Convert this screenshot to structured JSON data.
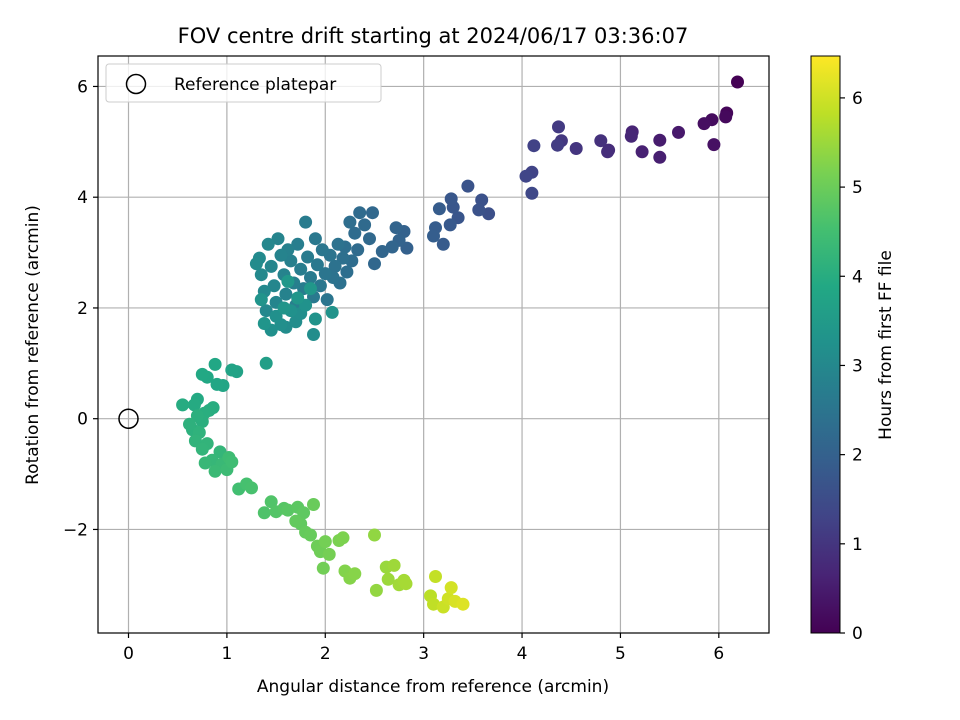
{
  "chart_data": {
    "type": "scatter",
    "title": "FOV centre drift starting at 2024/06/17 03:36:07",
    "xlabel": "Angular distance from reference (arcmin)",
    "ylabel": "Rotation from reference (arcmin)",
    "xlim": [
      -0.31,
      6.51
    ],
    "ylim": [
      -3.87,
      6.55
    ],
    "xticks": [
      0,
      1,
      2,
      3,
      4,
      5,
      6
    ],
    "yticks": [
      -2,
      0,
      2,
      4,
      6
    ],
    "ytick_labels": [
      "−2",
      "0",
      "2",
      "4",
      "6"
    ],
    "grid": true,
    "legend": {
      "position": "top-left",
      "entries": [
        "Reference platepar"
      ]
    },
    "reference_point": {
      "name": "Reference platepar",
      "x": 0,
      "y": 0
    },
    "colorbar": {
      "label": "Hours from first FF file",
      "range": [
        0,
        6.47
      ],
      "ticks": [
        0,
        1,
        2,
        3,
        4,
        5,
        6
      ],
      "colormap": "viridis"
    },
    "series": [
      {
        "color_value_index": 2,
        "points": [
          [
            6.19,
            6.08,
            0.0
          ],
          [
            6.08,
            5.52,
            0.1
          ],
          [
            6.07,
            5.45,
            0.15
          ],
          [
            5.93,
            5.4,
            0.2
          ],
          [
            5.85,
            5.33,
            0.25
          ],
          [
            5.95,
            4.95,
            0.3
          ],
          [
            5.59,
            5.17,
            0.45
          ],
          [
            5.4,
            5.03,
            0.5
          ],
          [
            5.4,
            4.72,
            0.55
          ],
          [
            5.22,
            4.82,
            0.6
          ],
          [
            5.12,
            5.18,
            0.65
          ],
          [
            5.11,
            5.1,
            0.7
          ],
          [
            4.88,
            4.85,
            0.8
          ],
          [
            4.87,
            4.82,
            0.85
          ],
          [
            4.8,
            5.02,
            0.9
          ],
          [
            4.55,
            4.88,
            1.0
          ],
          [
            4.4,
            5.02,
            1.05
          ],
          [
            4.37,
            5.27,
            1.1
          ],
          [
            4.36,
            4.94,
            1.15
          ],
          [
            4.12,
            4.93,
            1.25
          ],
          [
            4.1,
            4.45,
            1.3
          ],
          [
            4.04,
            4.38,
            1.35
          ],
          [
            4.1,
            4.07,
            1.4
          ],
          [
            3.66,
            3.7,
            1.55
          ],
          [
            3.59,
            3.95,
            1.6
          ],
          [
            3.56,
            3.77,
            1.62
          ],
          [
            3.45,
            4.2,
            1.65
          ],
          [
            3.35,
            3.63,
            1.7
          ],
          [
            3.3,
            3.82,
            1.72
          ],
          [
            3.28,
            3.97,
            1.75
          ],
          [
            3.27,
            3.5,
            1.8
          ],
          [
            3.2,
            3.15,
            1.85
          ],
          [
            3.16,
            3.79,
            1.88
          ],
          [
            3.12,
            3.45,
            1.9
          ],
          [
            3.1,
            3.3,
            1.92
          ],
          [
            2.83,
            3.08,
            2.0
          ],
          [
            2.8,
            3.38,
            2.02
          ],
          [
            2.75,
            3.22,
            2.05
          ],
          [
            2.72,
            3.45,
            2.08
          ],
          [
            2.68,
            3.1,
            2.1
          ],
          [
            2.58,
            3.02,
            2.12
          ],
          [
            2.5,
            2.8,
            2.15
          ],
          [
            2.48,
            3.72,
            2.18
          ],
          [
            2.45,
            3.25,
            2.2
          ],
          [
            2.4,
            3.5,
            2.22
          ],
          [
            2.35,
            3.72,
            2.24
          ],
          [
            2.33,
            3.05,
            2.26
          ],
          [
            2.3,
            3.35,
            2.28
          ],
          [
            2.27,
            2.85,
            2.3
          ],
          [
            2.25,
            3.55,
            2.32
          ],
          [
            2.22,
            2.65,
            2.34
          ],
          [
            2.2,
            3.1,
            2.36
          ],
          [
            2.18,
            2.9,
            2.38
          ],
          [
            2.15,
            2.45,
            2.4
          ],
          [
            2.13,
            3.15,
            2.42
          ],
          [
            2.1,
            2.75,
            2.44
          ],
          [
            2.08,
            2.55,
            2.46
          ],
          [
            2.05,
            2.95,
            2.48
          ],
          [
            2.02,
            2.15,
            2.5
          ],
          [
            2.0,
            2.62,
            2.52
          ],
          [
            1.97,
            3.05,
            2.54
          ],
          [
            1.95,
            2.4,
            2.56
          ],
          [
            1.92,
            2.78,
            2.58
          ],
          [
            1.9,
            3.25,
            2.6
          ],
          [
            1.88,
            2.2,
            2.62
          ],
          [
            1.85,
            2.55,
            2.64
          ],
          [
            1.82,
            2.92,
            2.66
          ],
          [
            1.8,
            3.55,
            2.68
          ],
          [
            1.78,
            2.35,
            2.7
          ],
          [
            1.75,
            2.7,
            2.72
          ],
          [
            1.72,
            3.15,
            2.74
          ],
          [
            1.7,
            2.05,
            2.76
          ],
          [
            1.68,
            2.45,
            2.78
          ],
          [
            1.65,
            2.85,
            2.8
          ],
          [
            1.62,
            3.05,
            2.82
          ],
          [
            1.6,
            2.25,
            2.84
          ],
          [
            1.58,
            2.6,
            2.86
          ],
          [
            1.55,
            2.95,
            2.88
          ],
          [
            1.52,
            3.25,
            2.9
          ],
          [
            1.5,
            2.1,
            2.92
          ],
          [
            1.48,
            2.4,
            2.94
          ],
          [
            1.45,
            2.75,
            2.96
          ],
          [
            1.42,
            3.15,
            2.98
          ],
          [
            1.4,
            1.95,
            3.0
          ],
          [
            1.38,
            2.3,
            3.02
          ],
          [
            1.35,
            2.6,
            3.04
          ],
          [
            1.33,
            2.9,
            3.06
          ],
          [
            1.3,
            2.8,
            3.08
          ],
          [
            1.6,
            1.65,
            3.1
          ],
          [
            1.7,
            1.75,
            3.12
          ],
          [
            1.88,
            1.52,
            3.14
          ],
          [
            1.75,
            1.9,
            3.16
          ],
          [
            1.55,
            1.7,
            3.18
          ],
          [
            1.45,
            1.6,
            3.2
          ],
          [
            1.5,
            1.85,
            3.22
          ],
          [
            1.65,
            1.95,
            3.24
          ],
          [
            1.8,
            2.05,
            3.26
          ],
          [
            1.9,
            1.8,
            3.28
          ],
          [
            2.07,
            1.92,
            3.3
          ],
          [
            1.35,
            2.15,
            3.32
          ],
          [
            1.38,
            1.72,
            3.34
          ],
          [
            1.58,
            2.0,
            3.36
          ],
          [
            1.72,
            2.18,
            3.38
          ],
          [
            1.85,
            2.35,
            3.4
          ],
          [
            1.62,
            2.48,
            3.42
          ],
          [
            1.4,
            1.0,
            3.6
          ],
          [
            1.1,
            0.85,
            3.7
          ],
          [
            1.05,
            0.88,
            3.75
          ],
          [
            0.96,
            0.6,
            3.8
          ],
          [
            0.9,
            0.62,
            3.82
          ],
          [
            0.88,
            0.98,
            3.84
          ],
          [
            0.8,
            0.75,
            3.86
          ],
          [
            0.75,
            0.8,
            3.88
          ],
          [
            0.7,
            0.35,
            3.92
          ],
          [
            0.67,
            0.25,
            3.95
          ],
          [
            0.55,
            0.25,
            3.98
          ],
          [
            0.86,
            0.2,
            4.0
          ],
          [
            0.82,
            0.15,
            4.02
          ],
          [
            0.77,
            0.1,
            4.04
          ],
          [
            0.75,
            -0.05,
            4.06
          ],
          [
            0.7,
            0.05,
            4.08
          ],
          [
            0.65,
            -0.2,
            4.1
          ],
          [
            0.62,
            -0.1,
            4.12
          ],
          [
            0.72,
            -0.25,
            4.15
          ],
          [
            0.68,
            -0.4,
            4.18
          ],
          [
            0.8,
            -0.45,
            4.2
          ],
          [
            0.75,
            -0.55,
            4.22
          ],
          [
            0.93,
            -0.6,
            4.25
          ],
          [
            0.85,
            -0.75,
            4.28
          ],
          [
            0.78,
            -0.8,
            4.3
          ],
          [
            0.95,
            -0.82,
            4.33
          ],
          [
            0.88,
            -0.95,
            4.36
          ],
          [
            1.0,
            -0.92,
            4.4
          ],
          [
            1.02,
            -0.7,
            4.42
          ],
          [
            1.05,
            -0.78,
            4.44
          ],
          [
            1.12,
            -1.27,
            4.5
          ],
          [
            1.2,
            -1.18,
            4.55
          ],
          [
            1.25,
            -1.25,
            4.58
          ],
          [
            1.38,
            -1.7,
            4.65
          ],
          [
            1.45,
            -1.5,
            4.68
          ],
          [
            1.5,
            -1.68,
            4.72
          ],
          [
            1.58,
            -1.62,
            4.75
          ],
          [
            1.62,
            -1.65,
            4.78
          ],
          [
            1.72,
            -1.6,
            4.82
          ],
          [
            1.78,
            -1.7,
            4.85
          ],
          [
            1.75,
            -1.9,
            4.88
          ],
          [
            1.7,
            -1.85,
            4.9
          ],
          [
            1.8,
            -2.05,
            4.93
          ],
          [
            1.85,
            -2.1,
            4.95
          ],
          [
            1.88,
            -1.55,
            4.97
          ],
          [
            1.92,
            -2.3,
            5.02
          ],
          [
            1.95,
            -2.4,
            5.05
          ],
          [
            1.98,
            -2.7,
            5.08
          ],
          [
            2.0,
            -2.22,
            5.1
          ],
          [
            2.04,
            -2.45,
            5.12
          ],
          [
            2.14,
            -2.2,
            5.18
          ],
          [
            2.18,
            -2.15,
            5.2
          ],
          [
            2.2,
            -2.75,
            5.25
          ],
          [
            2.25,
            -2.88,
            5.28
          ],
          [
            2.3,
            -2.8,
            5.3
          ],
          [
            2.5,
            -2.1,
            5.4
          ],
          [
            2.52,
            -3.1,
            5.42
          ],
          [
            2.62,
            -2.68,
            5.48
          ],
          [
            2.64,
            -2.9,
            5.5
          ],
          [
            2.7,
            -2.65,
            5.52
          ],
          [
            2.75,
            -3.0,
            5.55
          ],
          [
            2.8,
            -2.92,
            5.58
          ],
          [
            2.82,
            -2.98,
            5.6
          ],
          [
            3.07,
            -3.2,
            5.8
          ],
          [
            3.1,
            -3.35,
            5.85
          ],
          [
            3.12,
            -2.85,
            5.88
          ],
          [
            3.2,
            -3.4,
            5.95
          ],
          [
            3.25,
            -3.25,
            6.0
          ],
          [
            3.28,
            -3.05,
            6.05
          ],
          [
            3.32,
            -3.3,
            6.1
          ],
          [
            3.4,
            -3.35,
            6.15
          ]
        ]
      }
    ]
  }
}
